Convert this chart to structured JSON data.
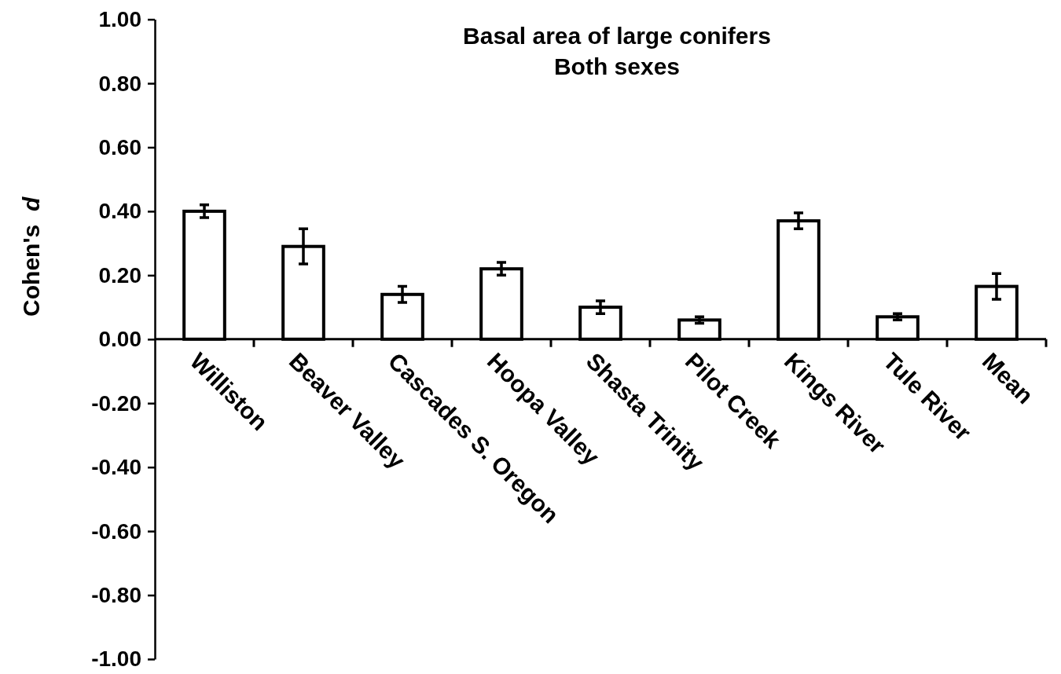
{
  "chart_data": {
    "type": "bar",
    "title": "Basal area of large conifers",
    "subtitle": "Both sexes",
    "ylabel": "Cohen's d",
    "categories": [
      "Williston",
      "Beaver Valley",
      "Cascades S. Oregon",
      "Hoopa Valley",
      "Shasta Trinity",
      "Pilot Creek",
      "Kings River",
      "Tule River",
      "Mean"
    ],
    "values": [
      0.4,
      0.29,
      0.14,
      0.22,
      0.1,
      0.06,
      0.37,
      0.07,
      0.165
    ],
    "errors": [
      0.02,
      0.055,
      0.025,
      0.02,
      0.02,
      0.01,
      0.025,
      0.01,
      0.04
    ],
    "color": "#ffffff",
    "ylim": [
      -1,
      1
    ],
    "yticks": [
      {
        "value": -1,
        "label": "-1.00"
      },
      {
        "value": -0.8,
        "label": "-0.80"
      },
      {
        "value": -0.6,
        "label": "-0.60"
      },
      {
        "value": -0.4,
        "label": "-0.40"
      },
      {
        "value": -0.2,
        "label": "-0.20"
      },
      {
        "value": 0,
        "label": "0.00"
      },
      {
        "value": 0.2,
        "label": "0.20"
      },
      {
        "value": 0.4,
        "label": "0.40"
      },
      {
        "value": 0.6,
        "label": "0.60"
      },
      {
        "value": 0.8,
        "label": "0.80"
      },
      {
        "value": 1,
        "label": "1.00"
      }
    ]
  }
}
